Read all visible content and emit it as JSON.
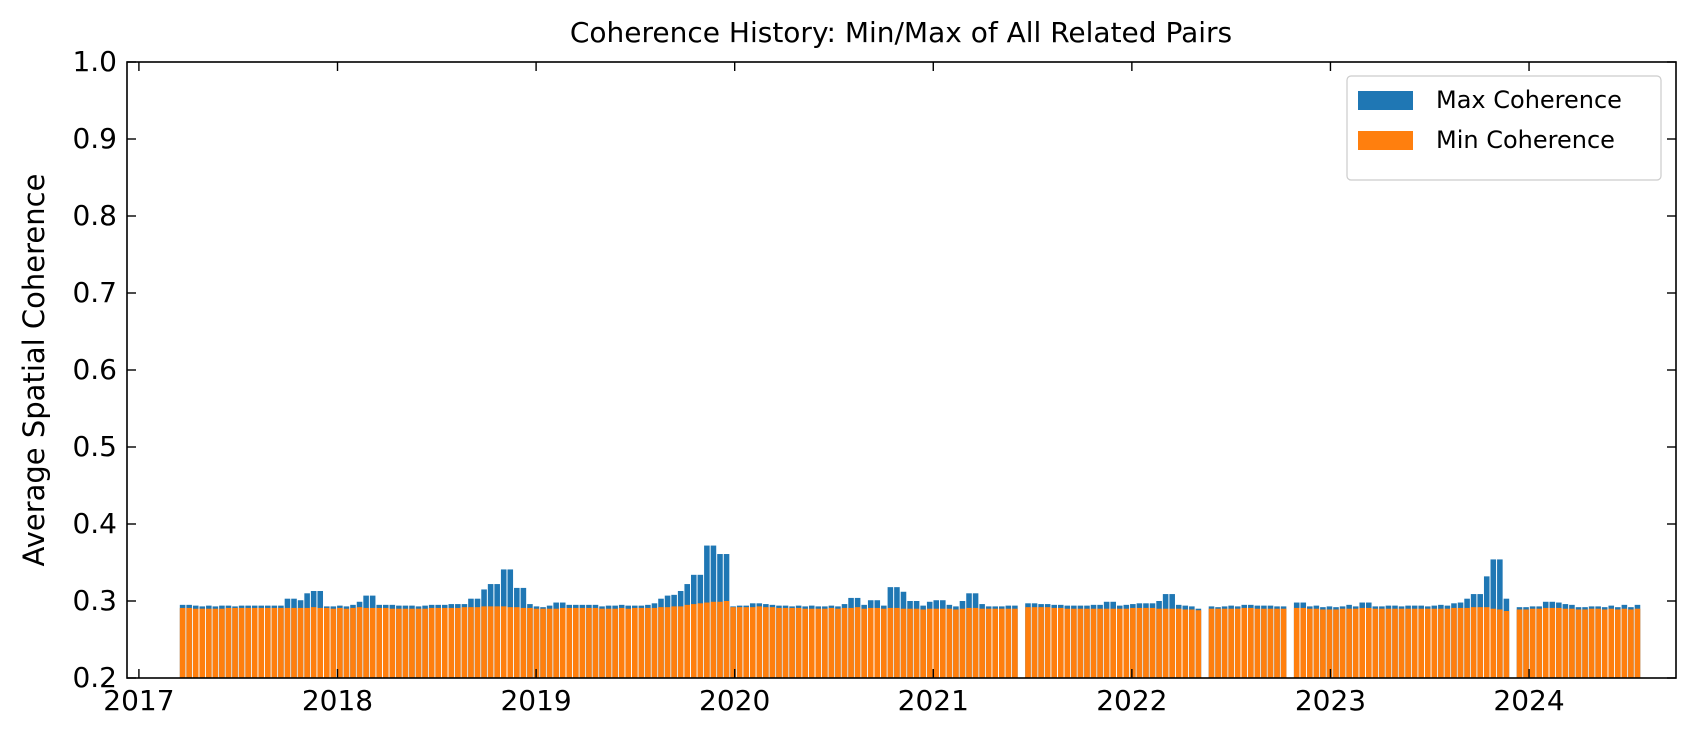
{
  "chart_data": {
    "type": "bar",
    "overlay": true,
    "title": "Coherence History: Min/Max of All Related Pairs",
    "y_label": "Average Spatial Coherence",
    "xlim": [
      2016.94,
      2024.74
    ],
    "xticks": [
      2017,
      2018,
      2019,
      2020,
      2021,
      2022,
      2023,
      2024
    ],
    "ylim": [
      0.2,
      1.0
    ],
    "yticks": [
      0.2,
      0.3,
      0.4,
      0.5,
      0.6,
      0.7,
      0.8,
      0.9,
      {
        "value": 1.0,
        "label": "1.0"
      }
    ],
    "legend": "upper right",
    "x": [
      2017.22,
      2017.253,
      2017.286,
      2017.319,
      2017.352,
      2017.385,
      2017.418,
      2017.451,
      2017.484,
      2017.517,
      2017.55,
      2017.583,
      2017.616,
      2017.649,
      2017.682,
      2017.715,
      2017.748,
      2017.781,
      2017.814,
      2017.847,
      2017.88,
      2017.913,
      2017.946,
      2017.979,
      2018.012,
      2018.045,
      2018.078,
      2018.111,
      2018.144,
      2018.177,
      2018.21,
      2018.243,
      2018.276,
      2018.309,
      2018.342,
      2018.375,
      2018.408,
      2018.441,
      2018.474,
      2018.507,
      2018.54,
      2018.573,
      2018.606,
      2018.639,
      2018.672,
      2018.705,
      2018.738,
      2018.771,
      2018.804,
      2018.837,
      2018.87,
      2018.903,
      2018.936,
      2018.969,
      2019.002,
      2019.035,
      2019.068,
      2019.101,
      2019.134,
      2019.167,
      2019.2,
      2019.233,
      2019.266,
      2019.299,
      2019.332,
      2019.365,
      2019.398,
      2019.431,
      2019.464,
      2019.497,
      2019.53,
      2019.563,
      2019.596,
      2019.629,
      2019.662,
      2019.695,
      2019.728,
      2019.761,
      2019.794,
      2019.827,
      2019.86,
      2019.893,
      2019.926,
      2019.959,
      2019.992,
      2020.025,
      2020.058,
      2020.091,
      2020.124,
      2020.157,
      2020.19,
      2020.223,
      2020.256,
      2020.289,
      2020.322,
      2020.355,
      2020.388,
      2020.421,
      2020.454,
      2020.487,
      2020.52,
      2020.553,
      2020.586,
      2020.619,
      2020.652,
      2020.685,
      2020.718,
      2020.751,
      2020.784,
      2020.817,
      2020.85,
      2020.883,
      2020.916,
      2020.949,
      2020.982,
      2021.015,
      2021.048,
      2021.081,
      2021.114,
      2021.147,
      2021.18,
      2021.213,
      2021.246,
      2021.279,
      2021.312,
      2021.345,
      2021.378,
      2021.411,
      2021.477,
      2021.51,
      2021.543,
      2021.576,
      2021.609,
      2021.642,
      2021.675,
      2021.708,
      2021.741,
      2021.774,
      2021.807,
      2021.84,
      2021.873,
      2021.906,
      2021.939,
      2021.972,
      2022.005,
      2022.038,
      2022.071,
      2022.104,
      2022.137,
      2022.17,
      2022.203,
      2022.236,
      2022.269,
      2022.302,
      2022.335,
      2022.401,
      2022.434,
      2022.467,
      2022.5,
      2022.533,
      2022.566,
      2022.599,
      2022.632,
      2022.665,
      2022.698,
      2022.731,
      2022.764,
      2022.83,
      2022.863,
      2022.896,
      2022.929,
      2022.962,
      2022.995,
      2023.028,
      2023.061,
      2023.094,
      2023.127,
      2023.16,
      2023.193,
      2023.226,
      2023.259,
      2023.292,
      2023.325,
      2023.358,
      2023.391,
      2023.424,
      2023.457,
      2023.49,
      2023.523,
      2023.556,
      2023.589,
      2023.622,
      2023.655,
      2023.688,
      2023.721,
      2023.754,
      2023.787,
      2023.82,
      2023.853,
      2023.886,
      2023.952,
      2023.985,
      2024.018,
      2024.051,
      2024.084,
      2024.117,
      2024.15,
      2024.183,
      2024.216,
      2024.249,
      2024.282,
      2024.315,
      2024.348,
      2024.381,
      2024.414,
      2024.447,
      2024.48,
      2024.513,
      2024.546
    ],
    "series": [
      {
        "name": "Max Coherence",
        "color": "#1f77b4",
        "values": [
          0.295,
          0.295,
          0.294,
          0.293,
          0.294,
          0.293,
          0.294,
          0.294,
          0.293,
          0.294,
          0.294,
          0.294,
          0.294,
          0.294,
          0.294,
          0.294,
          0.303,
          0.303,
          0.301,
          0.31,
          0.313,
          0.313,
          0.293,
          0.293,
          0.294,
          0.293,
          0.295,
          0.299,
          0.307,
          0.307,
          0.295,
          0.295,
          0.295,
          0.294,
          0.294,
          0.294,
          0.293,
          0.294,
          0.295,
          0.295,
          0.295,
          0.296,
          0.296,
          0.296,
          0.303,
          0.303,
          0.315,
          0.322,
          0.322,
          0.341,
          0.341,
          0.317,
          0.317,
          0.296,
          0.293,
          0.292,
          0.294,
          0.298,
          0.298,
          0.295,
          0.295,
          0.295,
          0.295,
          0.295,
          0.293,
          0.294,
          0.294,
          0.295,
          0.294,
          0.294,
          0.294,
          0.295,
          0.297,
          0.303,
          0.307,
          0.308,
          0.313,
          0.322,
          0.334,
          0.334,
          0.372,
          0.372,
          0.361,
          0.361,
          0.293,
          0.294,
          0.294,
          0.297,
          0.297,
          0.296,
          0.295,
          0.294,
          0.294,
          0.293,
          0.294,
          0.293,
          0.294,
          0.293,
          0.293,
          0.294,
          0.293,
          0.296,
          0.304,
          0.304,
          0.295,
          0.301,
          0.301,
          0.294,
          0.318,
          0.318,
          0.312,
          0.3,
          0.3,
          0.294,
          0.299,
          0.301,
          0.301,
          0.295,
          0.293,
          0.3,
          0.31,
          0.31,
          0.296,
          0.293,
          0.293,
          0.293,
          0.294,
          0.294,
          0.297,
          0.297,
          0.296,
          0.296,
          0.295,
          0.295,
          0.294,
          0.294,
          0.294,
          0.294,
          0.295,
          0.295,
          0.299,
          0.299,
          0.294,
          0.295,
          0.296,
          0.297,
          0.297,
          0.297,
          0.3,
          0.309,
          0.309,
          0.295,
          0.294,
          0.293,
          0.29,
          0.293,
          0.292,
          0.293,
          0.294,
          0.293,
          0.295,
          0.295,
          0.294,
          0.294,
          0.294,
          0.293,
          0.293,
          0.298,
          0.298,
          0.293,
          0.294,
          0.292,
          0.293,
          0.292,
          0.293,
          0.295,
          0.293,
          0.298,
          0.298,
          0.293,
          0.293,
          0.294,
          0.294,
          0.293,
          0.294,
          0.294,
          0.294,
          0.293,
          0.294,
          0.295,
          0.294,
          0.297,
          0.298,
          0.303,
          0.309,
          0.309,
          0.332,
          0.354,
          0.354,
          0.303,
          0.292,
          0.292,
          0.293,
          0.293,
          0.299,
          0.299,
          0.298,
          0.296,
          0.295,
          0.292,
          0.292,
          0.293,
          0.293,
          0.292,
          0.294,
          0.292,
          0.295,
          0.292,
          0.295
        ]
      },
      {
        "name": "Min Coherence",
        "color": "#ff7f0e",
        "values": [
          0.291,
          0.291,
          0.29,
          0.29,
          0.29,
          0.29,
          0.29,
          0.291,
          0.291,
          0.291,
          0.291,
          0.291,
          0.291,
          0.291,
          0.291,
          0.291,
          0.291,
          0.291,
          0.291,
          0.291,
          0.292,
          0.291,
          0.291,
          0.29,
          0.291,
          0.29,
          0.291,
          0.292,
          0.291,
          0.291,
          0.291,
          0.291,
          0.29,
          0.29,
          0.29,
          0.29,
          0.29,
          0.29,
          0.291,
          0.291,
          0.291,
          0.291,
          0.291,
          0.292,
          0.292,
          0.292,
          0.293,
          0.293,
          0.293,
          0.293,
          0.292,
          0.292,
          0.291,
          0.291,
          0.29,
          0.29,
          0.29,
          0.29,
          0.291,
          0.291,
          0.291,
          0.291,
          0.291,
          0.291,
          0.29,
          0.29,
          0.29,
          0.291,
          0.29,
          0.291,
          0.291,
          0.291,
          0.291,
          0.292,
          0.292,
          0.293,
          0.293,
          0.295,
          0.296,
          0.297,
          0.298,
          0.299,
          0.299,
          0.3,
          0.292,
          0.292,
          0.292,
          0.292,
          0.293,
          0.292,
          0.292,
          0.291,
          0.291,
          0.291,
          0.291,
          0.29,
          0.29,
          0.29,
          0.29,
          0.291,
          0.29,
          0.291,
          0.291,
          0.292,
          0.29,
          0.291,
          0.291,
          0.29,
          0.291,
          0.291,
          0.29,
          0.29,
          0.29,
          0.289,
          0.29,
          0.29,
          0.29,
          0.29,
          0.289,
          0.29,
          0.291,
          0.291,
          0.29,
          0.29,
          0.29,
          0.29,
          0.29,
          0.29,
          0.292,
          0.292,
          0.292,
          0.292,
          0.291,
          0.291,
          0.29,
          0.29,
          0.29,
          0.29,
          0.29,
          0.29,
          0.29,
          0.29,
          0.29,
          0.29,
          0.291,
          0.291,
          0.291,
          0.291,
          0.29,
          0.29,
          0.29,
          0.29,
          0.289,
          0.289,
          0.288,
          0.29,
          0.29,
          0.29,
          0.29,
          0.29,
          0.291,
          0.291,
          0.29,
          0.29,
          0.29,
          0.29,
          0.29,
          0.291,
          0.291,
          0.29,
          0.29,
          0.289,
          0.289,
          0.289,
          0.29,
          0.29,
          0.29,
          0.291,
          0.291,
          0.29,
          0.29,
          0.29,
          0.29,
          0.29,
          0.29,
          0.29,
          0.29,
          0.29,
          0.29,
          0.29,
          0.29,
          0.291,
          0.291,
          0.291,
          0.292,
          0.292,
          0.292,
          0.29,
          0.289,
          0.287,
          0.289,
          0.289,
          0.29,
          0.29,
          0.291,
          0.291,
          0.291,
          0.29,
          0.29,
          0.289,
          0.289,
          0.29,
          0.29,
          0.289,
          0.29,
          0.289,
          0.29,
          0.289,
          0.29
        ]
      }
    ]
  }
}
